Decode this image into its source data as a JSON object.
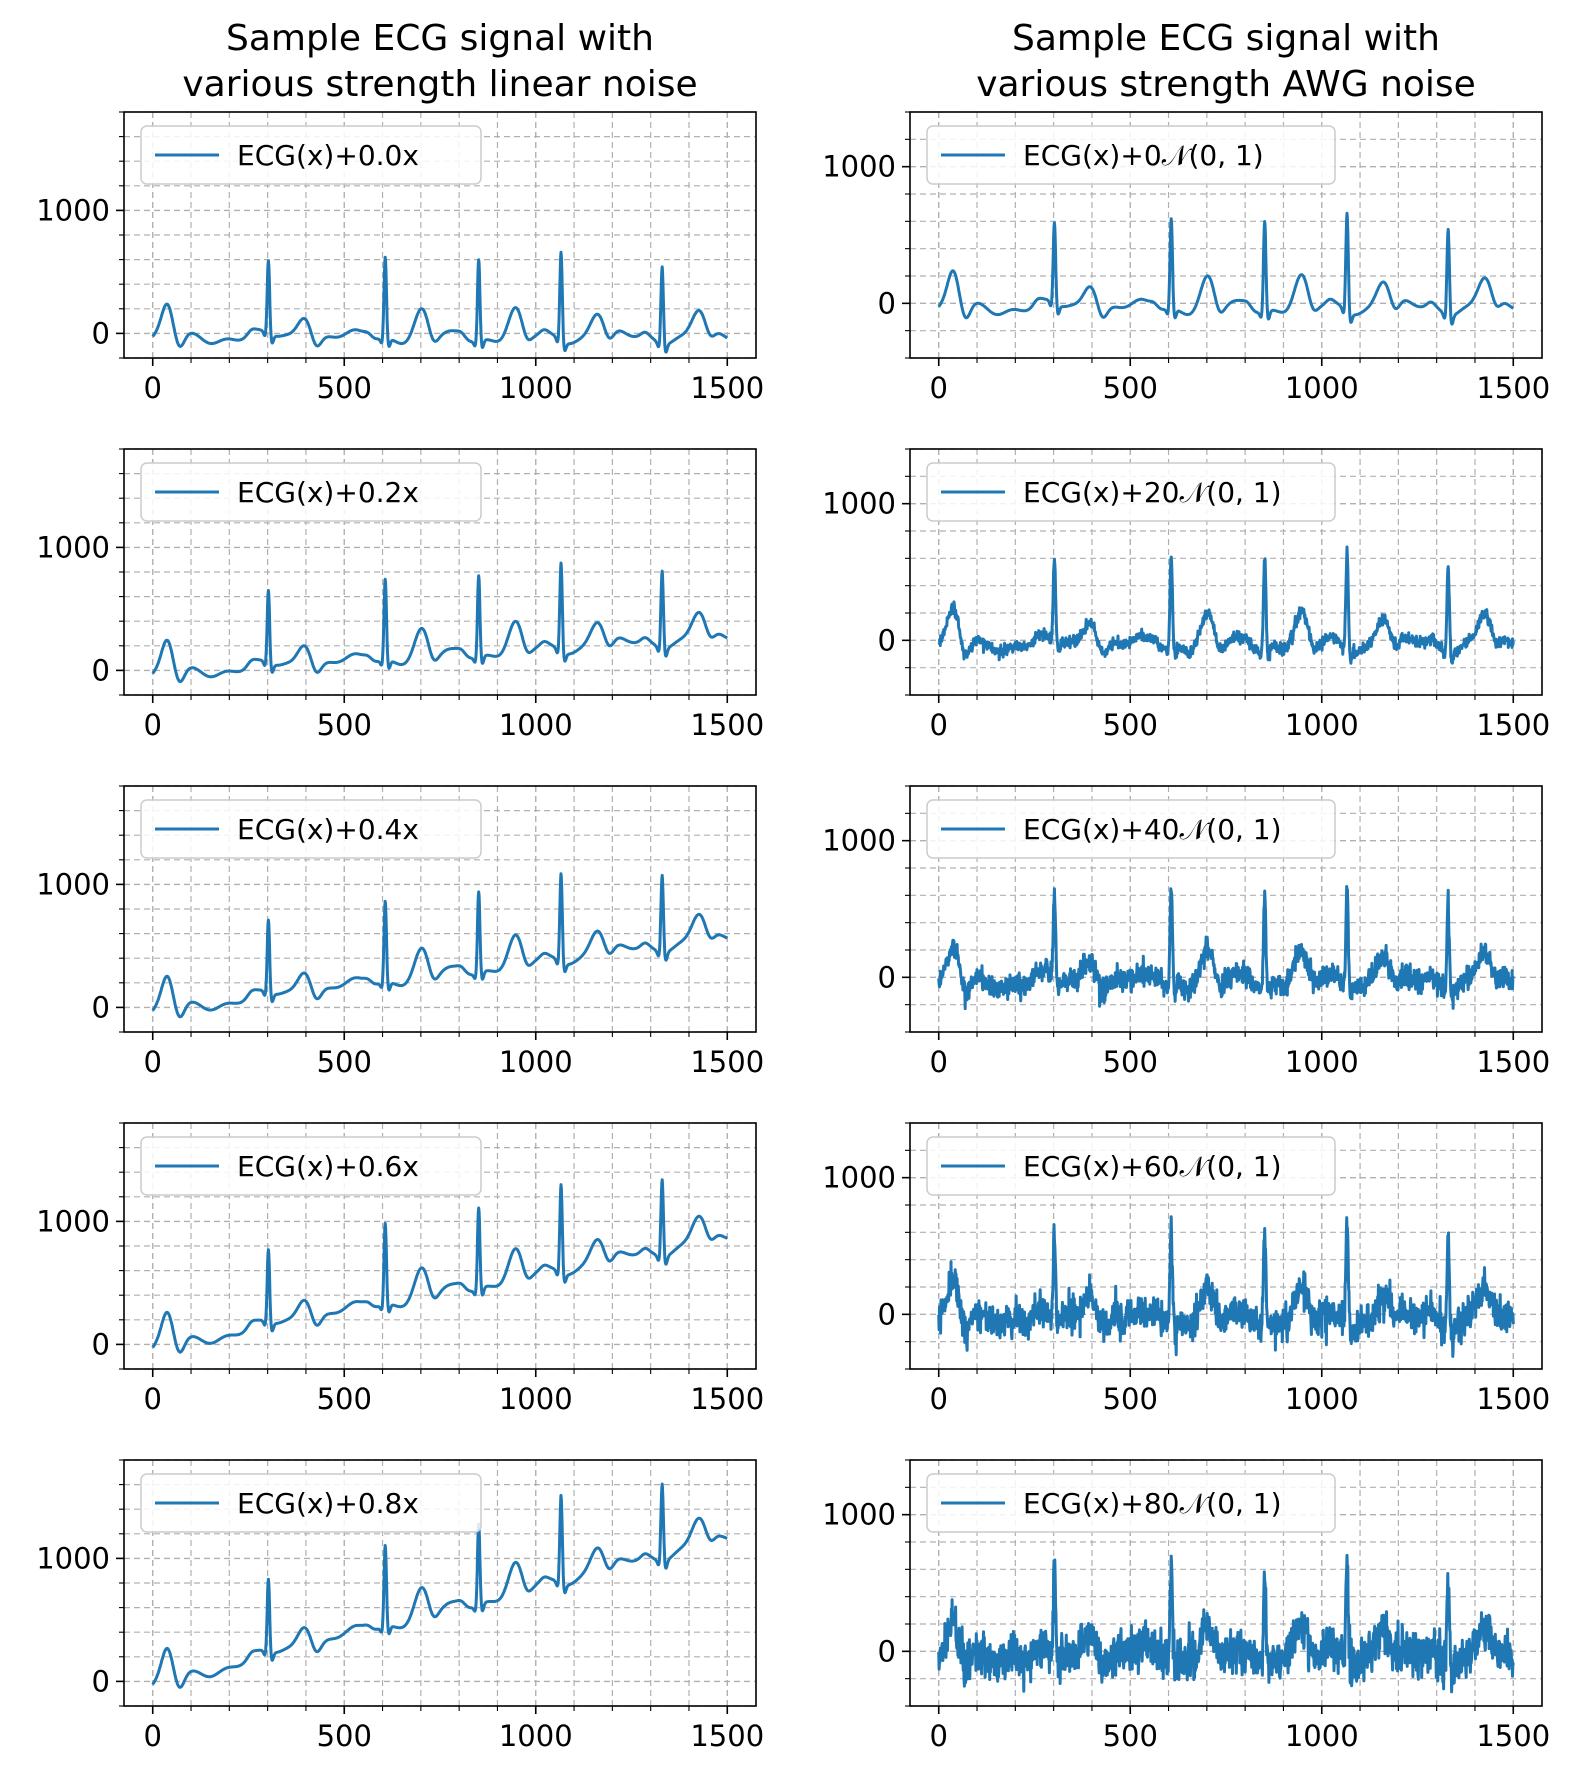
{
  "colors": {
    "series": "#1f77b4"
  },
  "columns": [
    {
      "title_lines": [
        "Sample ECG signal with",
        "various strength linear noise"
      ]
    },
    {
      "title_lines": [
        "Sample ECG signal with",
        "various strength AWG noise"
      ]
    }
  ],
  "chart_data": [
    {
      "type": "line",
      "column": 0,
      "row": 0,
      "legend": "ECG(x)+0.0x",
      "noise": "linear",
      "strength": 0.0,
      "xlim": [
        -75,
        1575
      ],
      "ylim": [
        -200,
        1800
      ],
      "xticks": [
        "0",
        "500",
        "1000",
        "1500"
      ],
      "yticks": [
        "0",
        "1000"
      ],
      "x_range": [
        0,
        1500
      ]
    },
    {
      "type": "line",
      "column": 0,
      "row": 1,
      "legend": "ECG(x)+0.2x",
      "noise": "linear",
      "strength": 0.2,
      "xlim": [
        -75,
        1575
      ],
      "ylim": [
        -200,
        1800
      ],
      "xticks": [
        "0",
        "500",
        "1000",
        "1500"
      ],
      "yticks": [
        "0",
        "1000"
      ],
      "x_range": [
        0,
        1500
      ]
    },
    {
      "type": "line",
      "column": 0,
      "row": 2,
      "legend": "ECG(x)+0.4x",
      "noise": "linear",
      "strength": 0.4,
      "xlim": [
        -75,
        1575
      ],
      "ylim": [
        -200,
        1800
      ],
      "xticks": [
        "0",
        "500",
        "1000",
        "1500"
      ],
      "yticks": [
        "0",
        "1000"
      ],
      "x_range": [
        0,
        1500
      ]
    },
    {
      "type": "line",
      "column": 0,
      "row": 3,
      "legend": "ECG(x)+0.6x",
      "noise": "linear",
      "strength": 0.6,
      "xlim": [
        -75,
        1575
      ],
      "ylim": [
        -200,
        1800
      ],
      "xticks": [
        "0",
        "500",
        "1000",
        "1500"
      ],
      "yticks": [
        "0",
        "1000"
      ],
      "x_range": [
        0,
        1500
      ]
    },
    {
      "type": "line",
      "column": 0,
      "row": 4,
      "legend": "ECG(x)+0.8x",
      "noise": "linear",
      "strength": 0.8,
      "xlim": [
        -75,
        1575
      ],
      "ylim": [
        -200,
        1800
      ],
      "xticks": [
        "0",
        "500",
        "1000",
        "1500"
      ],
      "yticks": [
        "0",
        "1000"
      ],
      "x_range": [
        0,
        1500
      ]
    },
    {
      "type": "line",
      "column": 1,
      "row": 0,
      "legend": "ECG(x)+0𝒩(0, 1)",
      "noise": "awg",
      "strength": 0,
      "xlim": [
        -75,
        1575
      ],
      "ylim": [
        -400,
        1400
      ],
      "xticks": [
        "0",
        "500",
        "1000",
        "1500"
      ],
      "yticks": [
        "0",
        "1000"
      ],
      "x_range": [
        0,
        1500
      ]
    },
    {
      "type": "line",
      "column": 1,
      "row": 1,
      "legend": "ECG(x)+20𝒩(0, 1)",
      "noise": "awg",
      "strength": 20,
      "xlim": [
        -75,
        1575
      ],
      "ylim": [
        -400,
        1400
      ],
      "xticks": [
        "0",
        "500",
        "1000",
        "1500"
      ],
      "yticks": [
        "0",
        "1000"
      ],
      "x_range": [
        0,
        1500
      ]
    },
    {
      "type": "line",
      "column": 1,
      "row": 2,
      "legend": "ECG(x)+40𝒩(0, 1)",
      "noise": "awg",
      "strength": 40,
      "xlim": [
        -75,
        1575
      ],
      "ylim": [
        -400,
        1400
      ],
      "xticks": [
        "0",
        "500",
        "1000",
        "1500"
      ],
      "yticks": [
        "0",
        "1000"
      ],
      "x_range": [
        0,
        1500
      ]
    },
    {
      "type": "line",
      "column": 1,
      "row": 3,
      "legend": "ECG(x)+60𝒩(0, 1)",
      "noise": "awg",
      "strength": 60,
      "xlim": [
        -75,
        1575
      ],
      "ylim": [
        -400,
        1400
      ],
      "xticks": [
        "0",
        "500",
        "1000",
        "1500"
      ],
      "yticks": [
        "0",
        "1000"
      ],
      "x_range": [
        0,
        1500
      ]
    },
    {
      "type": "line",
      "column": 1,
      "row": 4,
      "legend": "ECG(x)+80𝒩(0, 1)",
      "noise": "awg",
      "strength": 80,
      "xlim": [
        -75,
        1575
      ],
      "ylim": [
        -400,
        1400
      ],
      "xticks": [
        "0",
        "500",
        "1000",
        "1500"
      ],
      "yticks": [
        "0",
        "1000"
      ],
      "x_range": [
        0,
        1500
      ]
    }
  ]
}
